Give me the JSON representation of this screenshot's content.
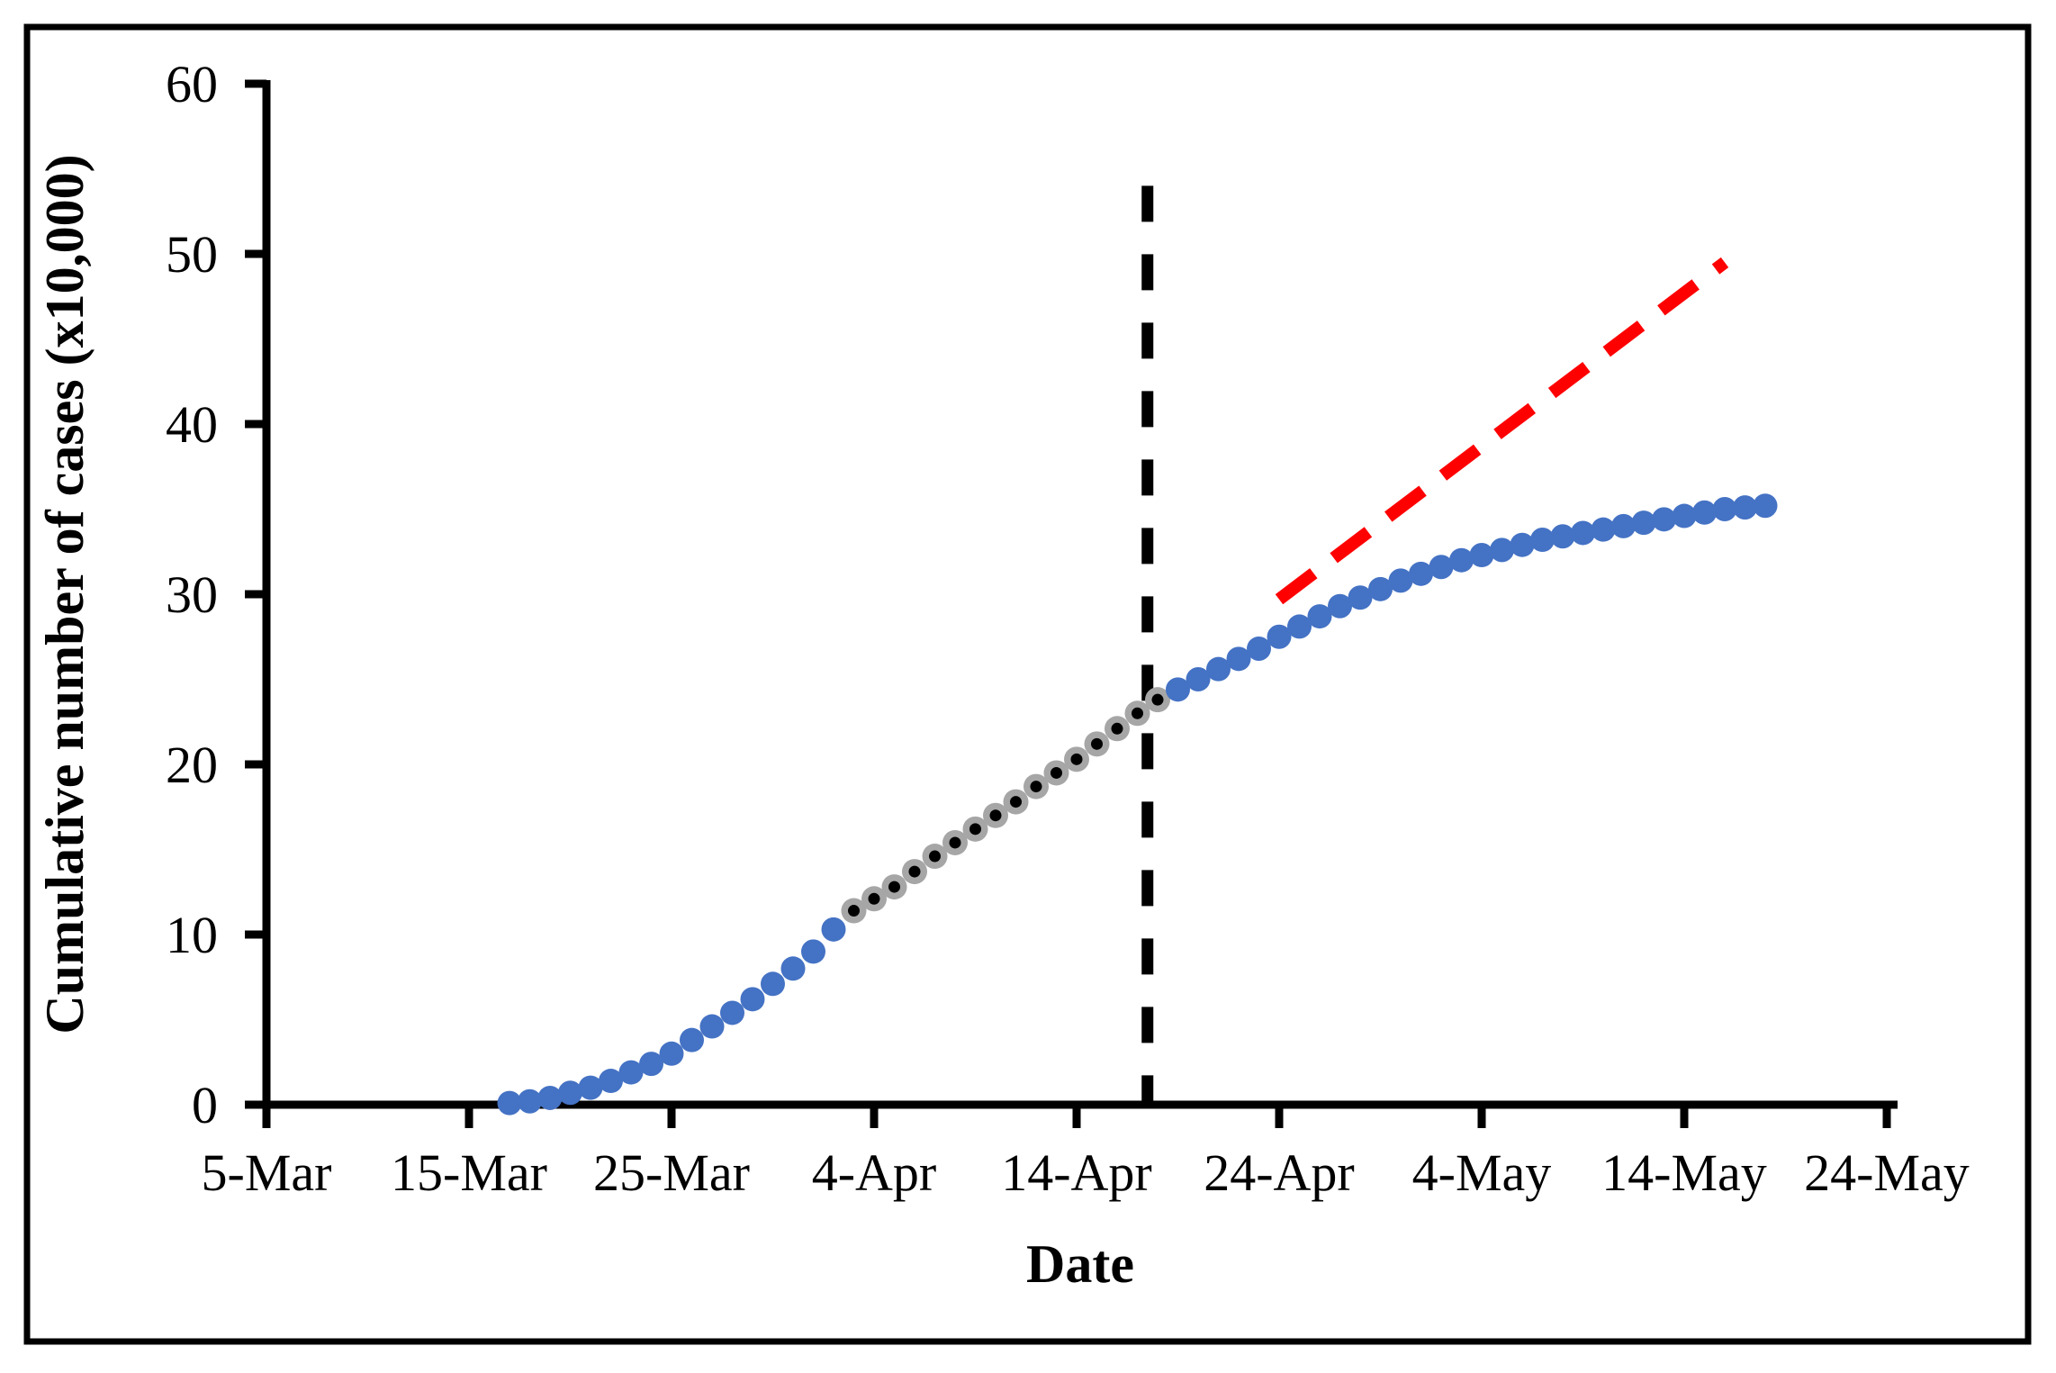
{
  "chart_data": {
    "type": "scatter",
    "title": "",
    "xlabel": "Date",
    "ylabel": "Cumulative number of cases (x10,000)",
    "x_ticks": [
      "5-Mar",
      "15-Mar",
      "25-Mar",
      "4-Apr",
      "14-Apr",
      "24-Apr",
      "4-May",
      "14-May",
      "24-May"
    ],
    "y_ticks": [
      0,
      10,
      20,
      30,
      40,
      50,
      60
    ],
    "ylim": [
      0,
      60
    ],
    "x_range": [
      "5-Mar",
      "24-May"
    ],
    "grid": false,
    "legend": false,
    "series": [
      {
        "name": "observed-cases-early",
        "marker": "filled-circle",
        "color": "#4472C4",
        "dates": [
          "17-Mar",
          "18-Mar",
          "19-Mar",
          "20-Mar",
          "21-Mar",
          "22-Mar",
          "23-Mar",
          "24-Mar",
          "25-Mar",
          "26-Mar",
          "27-Mar",
          "28-Mar",
          "29-Mar",
          "30-Mar",
          "31-Mar",
          "1-Apr",
          "2-Apr"
        ],
        "values": [
          0.1,
          0.2,
          0.4,
          0.7,
          1.0,
          1.4,
          1.9,
          2.4,
          3.0,
          3.8,
          4.6,
          5.4,
          6.2,
          7.1,
          8.0,
          9.0,
          10.3
        ]
      },
      {
        "name": "model-fit-window",
        "marker": "circle-with-center-dot",
        "color": "#A6A6A6",
        "center_color": "#000000",
        "dates": [
          "3-Apr",
          "4-Apr",
          "5-Apr",
          "6-Apr",
          "7-Apr",
          "8-Apr",
          "9-Apr",
          "10-Apr",
          "11-Apr",
          "12-Apr",
          "13-Apr",
          "14-Apr",
          "15-Apr",
          "16-Apr",
          "17-Apr",
          "18-Apr"
        ],
        "values": [
          11.4,
          12.1,
          12.8,
          13.7,
          14.6,
          15.4,
          16.2,
          17.0,
          17.8,
          18.7,
          19.5,
          20.3,
          21.2,
          22.1,
          23.0,
          23.8
        ]
      },
      {
        "name": "observed-cases-late",
        "marker": "filled-circle",
        "color": "#4472C4",
        "dates": [
          "19-Apr",
          "20-Apr",
          "21-Apr",
          "22-Apr",
          "23-Apr",
          "24-Apr",
          "25-Apr",
          "26-Apr",
          "27-Apr",
          "28-Apr",
          "29-Apr",
          "30-Apr",
          "1-May",
          "2-May",
          "3-May",
          "4-May",
          "5-May",
          "6-May",
          "7-May",
          "8-May",
          "9-May",
          "10-May",
          "11-May",
          "12-May",
          "13-May",
          "14-May",
          "15-May",
          "16-May",
          "17-May",
          "18-May"
        ],
        "values": [
          24.4,
          25.0,
          25.6,
          26.2,
          26.8,
          27.5,
          28.1,
          28.7,
          29.3,
          29.8,
          30.3,
          30.8,
          31.2,
          31.6,
          32.0,
          32.3,
          32.6,
          32.9,
          33.2,
          33.4,
          33.6,
          33.8,
          34.0,
          34.2,
          34.4,
          34.6,
          34.8,
          35.0,
          35.1,
          35.2
        ]
      }
    ],
    "projection_line": {
      "name": "projection-dashed-red",
      "style": "dashed",
      "color": "#FF0000",
      "start": {
        "date": "24-Apr",
        "value": 29.7
      },
      "end": {
        "date": "16-May",
        "value": 49.5
      }
    },
    "cutoff_line": {
      "name": "fit-cutoff-dashed-black",
      "style": "dashed",
      "color": "#000000",
      "between_dates": [
        "17-Apr",
        "18-Apr"
      ],
      "top_value": 54,
      "bottom_value": 0
    }
  }
}
